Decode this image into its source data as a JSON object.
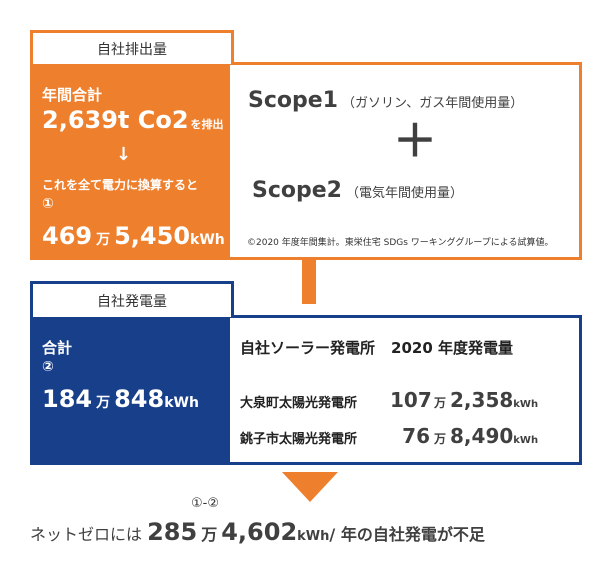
{
  "emissions": {
    "tab": "自社排出量",
    "total_label": "年間合計",
    "total_value": "2,639t Co2",
    "total_suffix": "を排出",
    "arrow": "↓",
    "convert_text": "これを全て電力に換算すると",
    "circle": "①",
    "kwh_man": "469",
    "unit_man": "万",
    "kwh_rest": "5,450",
    "unit_kwh": "kWh",
    "scope1_name": "Scope1",
    "scope1_desc": "（ガソリン、ガス年間使用量）",
    "plus": "＋",
    "scope2_name": "Scope2",
    "scope2_desc": "（電気年間使用量）",
    "note": "©2020 年度年間集計。東栄住宅 SDGs ワーキンググループによる試算値。",
    "colors": {
      "accent": "#ee7f2d"
    }
  },
  "generation": {
    "tab": "自社発電量",
    "total_label": "合計",
    "circle": "②",
    "kwh_man": "184",
    "unit_man": "万",
    "kwh_rest": "848",
    "unit_kwh": "kWh",
    "title": "自社ソーラー発電所",
    "title_year": "2020 年度発電量",
    "plants": [
      {
        "name": "大泉町太陽光発電所",
        "man": "107",
        "unit_man": "万",
        "rest": "2,358",
        "unit": "kWh"
      },
      {
        "name": "銚子市太陽光発電所",
        "man": "76",
        "unit_man": "万",
        "rest": "8,490",
        "unit": "kWh"
      }
    ],
    "colors": {
      "accent": "#173f8a"
    }
  },
  "result": {
    "circle_label": "①-②",
    "prefix": "ネットゼロには",
    "man": "285",
    "unit_man": "万",
    "rest": "4,602",
    "unit": "kWh",
    "suffix": "/ 年の自社発電が不足"
  }
}
